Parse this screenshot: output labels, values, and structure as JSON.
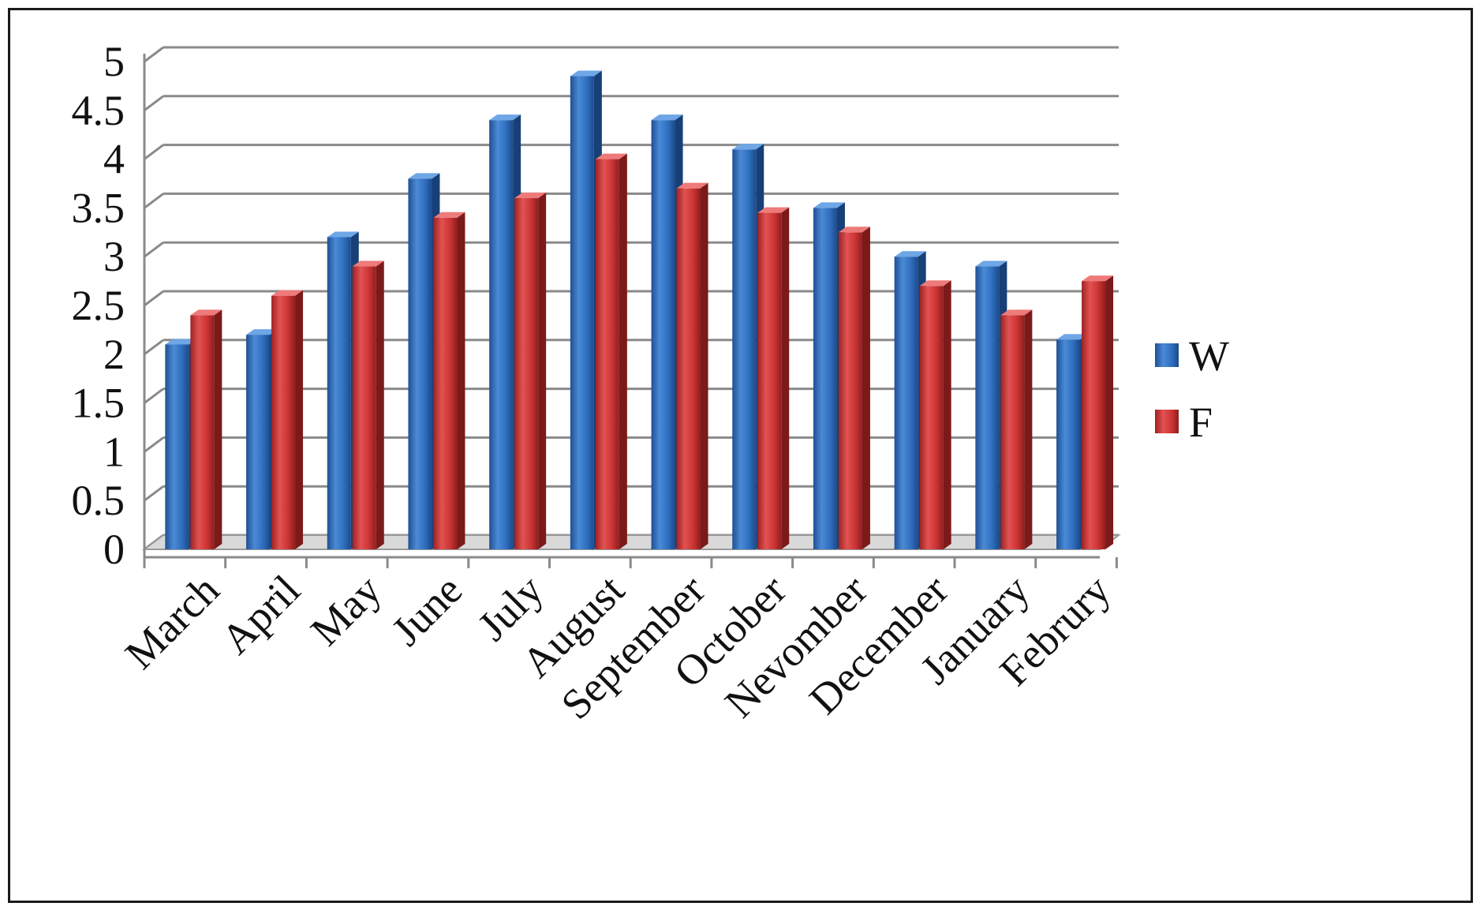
{
  "chart_data": {
    "type": "bar",
    "style": "3d-clustered-column",
    "title": "",
    "xlabel": "",
    "ylabel": "",
    "ylim": [
      0,
      5
    ],
    "yticks": [
      "0",
      "0.5",
      "1",
      "1.5",
      "2",
      "2.5",
      "3",
      "3.5",
      "4",
      "4.5",
      "5"
    ],
    "grid": true,
    "legend_position": "right",
    "categories": [
      "March",
      "April",
      "May",
      "June",
      "July",
      "August",
      "September",
      "October",
      "Nevomber",
      "December",
      "January",
      "Februry"
    ],
    "series": [
      {
        "name": "W",
        "color": "#2f6fbf",
        "values": [
          2.1,
          2.2,
          3.2,
          3.8,
          4.4,
          4.85,
          4.4,
          4.1,
          3.5,
          3.0,
          2.9,
          2.15
        ]
      },
      {
        "name": "F",
        "color": "#d23a3a",
        "values": [
          2.4,
          2.6,
          2.9,
          3.4,
          3.6,
          4.0,
          3.7,
          3.45,
          3.25,
          2.7,
          2.4,
          2.75
        ]
      }
    ]
  }
}
